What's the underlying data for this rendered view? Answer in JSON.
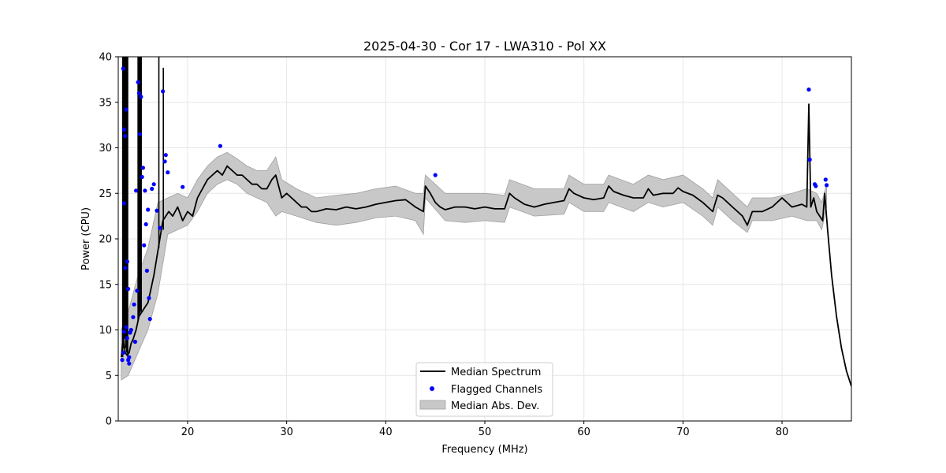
{
  "chart_data": {
    "type": "line",
    "title": "2025-04-30 - Cor 17 - LWA310 - Pol XX",
    "xlabel": "Frequency (MHz)",
    "ylabel": "Power (CPU)",
    "xlim": [
      13,
      87
    ],
    "ylim": [
      0,
      40
    ],
    "xticks": [
      20,
      30,
      40,
      50,
      60,
      70,
      80
    ],
    "yticks": [
      0,
      5,
      10,
      15,
      20,
      25,
      30,
      35,
      40
    ],
    "grid": true,
    "legend_position": "bottom-center",
    "colors": {
      "median": "#000000",
      "flagged": "#0000ff",
      "mad_fill": "#c8c8c8",
      "mad_edge": "#a0a0a0",
      "grid": "#e6e6e6"
    },
    "series": [
      {
        "name": "Median Spectrum",
        "kind": "line",
        "x": [
          13.3,
          13.5,
          13.7,
          13.9,
          14.1,
          14.3,
          14.5,
          14.8,
          15.1,
          15.4,
          15.7,
          16.0,
          16.3,
          16.6,
          16.9,
          17.2,
          17.5,
          17.8,
          18.1,
          18.5,
          19.0,
          19.5,
          20.0,
          20.5,
          21.0,
          21.5,
          22.0,
          22.5,
          23.0,
          23.5,
          24.0,
          24.5,
          25.0,
          25.5,
          26.0,
          26.5,
          27.0,
          27.5,
          28.0,
          28.5,
          28.9,
          29.5,
          30.0,
          30.5,
          31.0,
          31.5,
          32.0,
          32.5,
          33.0,
          34.0,
          35.0,
          36.0,
          37.0,
          38.0,
          39.0,
          40.0,
          41.0,
          42.0,
          43.0,
          43.8,
          44.0,
          44.5,
          45.0,
          45.5,
          46.0,
          47.0,
          48.0,
          49.0,
          50.0,
          51.0,
          52.0,
          52.5,
          53.0,
          54.0,
          55.0,
          56.0,
          57.0,
          58.0,
          58.5,
          59.0,
          60.0,
          61.0,
          62.0,
          62.5,
          63.0,
          64.0,
          65.0,
          66.0,
          66.5,
          67.0,
          68.0,
          69.0,
          69.5,
          70.0,
          71.0,
          72.0,
          73.0,
          73.5,
          74.0,
          75.0,
          76.0,
          76.5,
          77.0,
          78.0,
          79.0,
          80.0,
          81.0,
          82.0,
          82.5,
          82.7,
          82.9,
          83.2,
          83.5,
          83.8,
          84.1,
          84.3,
          84.6,
          85.0,
          85.5,
          86.0,
          86.5,
          87.0
        ],
        "y": [
          7.0,
          9.0,
          7.5,
          7.2,
          7.5,
          8.5,
          9.0,
          10.0,
          11.5,
          12.0,
          12.5,
          13.0,
          14.5,
          16.0,
          18.0,
          20.0,
          22.0,
          22.5,
          23.0,
          22.5,
          23.5,
          22.0,
          23.0,
          22.5,
          24.5,
          25.5,
          26.5,
          27.0,
          27.5,
          27.0,
          28.0,
          27.5,
          27.0,
          27.0,
          26.5,
          26.0,
          26.0,
          25.5,
          25.5,
          26.5,
          27.0,
          24.5,
          25.0,
          24.5,
          24.0,
          23.5,
          23.5,
          23.0,
          23.0,
          23.3,
          23.2,
          23.5,
          23.3,
          23.5,
          23.8,
          24.0,
          24.2,
          24.3,
          23.5,
          23.0,
          25.8,
          25.0,
          24.0,
          23.5,
          23.2,
          23.5,
          23.5,
          23.3,
          23.5,
          23.3,
          23.3,
          25.0,
          24.5,
          23.8,
          23.5,
          23.8,
          24.0,
          24.2,
          25.5,
          25.0,
          24.5,
          24.3,
          24.5,
          25.8,
          25.2,
          24.8,
          24.5,
          24.5,
          25.5,
          24.8,
          25.0,
          25.0,
          25.6,
          25.2,
          24.8,
          24.0,
          23.0,
          24.8,
          24.5,
          23.5,
          22.5,
          21.5,
          23.0,
          23.0,
          23.5,
          24.5,
          23.5,
          23.8,
          23.5,
          34.8,
          23.5,
          24.5,
          23.0,
          22.5,
          22.0,
          25.0,
          21.0,
          16.0,
          11.5,
          8.0,
          5.5,
          3.8
        ]
      },
      {
        "name": "Flagged Channels",
        "kind": "scatter",
        "x": [
          13.4,
          13.5,
          13.6,
          13.6,
          13.7,
          13.8,
          13.9,
          14.0,
          14.1,
          13.5,
          13.6,
          13.7,
          13.8,
          13.9,
          14.0,
          14.1,
          14.2,
          14.3,
          14.5,
          14.6,
          14.7,
          14.8,
          14.9,
          15.0,
          15.1,
          15.2,
          15.3,
          15.4,
          15.5,
          15.6,
          15.7,
          15.8,
          15.9,
          16.0,
          16.1,
          16.2,
          16.4,
          16.6,
          16.9,
          17.2,
          17.5,
          17.7,
          17.8,
          18.0,
          19.5,
          23.3,
          45.0,
          82.7,
          82.8,
          83.3,
          83.4,
          84.4,
          84.5
        ],
        "y": [
          6.7,
          38.7,
          32.0,
          23.9,
          31.3,
          34.2,
          17.5,
          14.5,
          6.3,
          7.5,
          9.8,
          16.8,
          10.3,
          9.1,
          6.7,
          7.0,
          9.7,
          10.0,
          11.4,
          12.8,
          8.7,
          25.3,
          14.3,
          37.2,
          36.0,
          31.5,
          35.6,
          26.8,
          27.8,
          19.3,
          25.3,
          21.6,
          16.5,
          23.2,
          13.5,
          11.2,
          25.5,
          26.0,
          23.1,
          21.2,
          36.2,
          28.5,
          29.2,
          27.3,
          25.7,
          30.2,
          27.0,
          36.4,
          28.7,
          26.0,
          25.8,
          26.5,
          25.9
        ]
      },
      {
        "name": "Median Abs. Dev.",
        "kind": "band",
        "x": [
          13.3,
          14.0,
          15.0,
          16.0,
          17.0,
          18.0,
          19.0,
          20.0,
          21.0,
          22.0,
          23.0,
          24.0,
          25.0,
          26.0,
          27.0,
          28.0,
          28.9,
          29.5,
          31.0,
          33.0,
          35.0,
          37.0,
          39.0,
          41.0,
          43.0,
          43.8,
          44.0,
          46.0,
          48.0,
          50.0,
          52.0,
          52.5,
          55.0,
          58.0,
          58.5,
          60.0,
          62.0,
          62.5,
          65.0,
          66.5,
          68.0,
          70.0,
          72.0,
          73.0,
          73.5,
          75.0,
          76.5,
          77.0,
          79.0,
          81.0,
          82.5,
          83.5,
          84.0,
          84.5
        ],
        "lower": [
          4.5,
          5.0,
          7.5,
          10.0,
          14.0,
          20.5,
          21.0,
          21.5,
          23.0,
          25.0,
          26.0,
          26.5,
          26.0,
          25.0,
          24.5,
          24.0,
          22.5,
          23.0,
          22.5,
          21.8,
          21.5,
          21.8,
          22.3,
          22.5,
          22.0,
          20.5,
          24.5,
          22.0,
          21.8,
          22.0,
          21.8,
          23.5,
          22.5,
          22.7,
          24.0,
          23.0,
          23.0,
          24.0,
          23.0,
          24.0,
          23.5,
          24.0,
          22.5,
          21.5,
          23.5,
          22.0,
          20.7,
          22.0,
          22.0,
          22.5,
          22.0,
          22.0,
          21.0,
          23.5
        ],
        "upper": [
          10.0,
          12.0,
          16.0,
          19.0,
          24.0,
          24.5,
          25.0,
          24.5,
          26.5,
          28.0,
          29.0,
          29.5,
          28.8,
          28.0,
          27.5,
          27.5,
          29.0,
          26.5,
          25.5,
          24.5,
          24.8,
          25.0,
          25.5,
          25.8,
          25.0,
          25.0,
          27.0,
          25.0,
          25.0,
          25.0,
          24.8,
          26.5,
          25.5,
          25.5,
          27.0,
          26.0,
          26.0,
          27.0,
          26.0,
          27.0,
          26.5,
          27.0,
          25.5,
          24.5,
          26.5,
          25.0,
          23.5,
          24.5,
          24.5,
          25.0,
          25.5,
          25.0,
          24.0,
          26.0
        ]
      }
    ],
    "legend": [
      "Median Spectrum",
      "Flagged Channels",
      "Median Abs. Dev."
    ]
  }
}
